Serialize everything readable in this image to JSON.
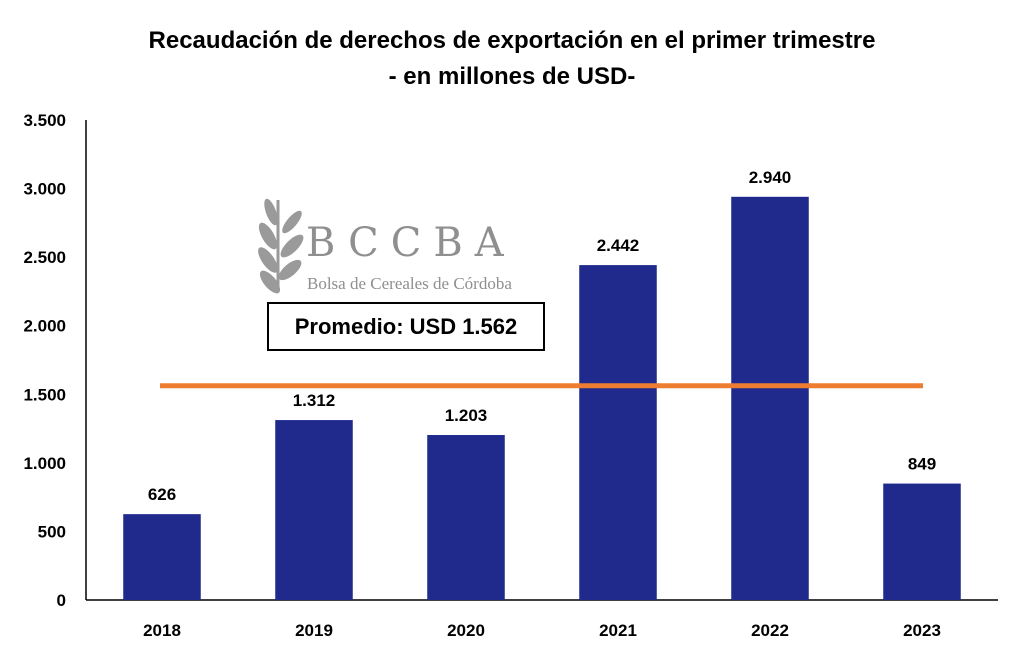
{
  "chart_data": {
    "type": "bar",
    "title": "Recaudación de derechos de exportación en el primer trimestre",
    "subtitle": "- en millones de USD-",
    "categories": [
      "2018",
      "2019",
      "2020",
      "2021",
      "2022",
      "2023"
    ],
    "values": [
      626,
      1312,
      1203,
      2442,
      2940,
      849
    ],
    "value_labels": [
      "626",
      "1.312",
      "1.203",
      "2.442",
      "2.940",
      "849"
    ],
    "ylim": [
      0,
      3500
    ],
    "yticks": [
      0,
      500,
      1000,
      1500,
      2000,
      2500,
      3000,
      3500
    ],
    "ytick_labels": [
      "0",
      "500",
      "1.000",
      "1.500",
      "2.000",
      "2.500",
      "3.000",
      "3.500"
    ],
    "xlabel": "",
    "ylabel": "",
    "grid": false,
    "average": {
      "value": 1562,
      "label": "Promedio: USD 1.562"
    },
    "colors": {
      "bar": "#1f2a8c",
      "average_line": "#ed7d31",
      "axis": "#000000"
    }
  },
  "logo": {
    "acronym": "BCCBA",
    "name": "Bolsa de Cereales de Córdoba"
  }
}
